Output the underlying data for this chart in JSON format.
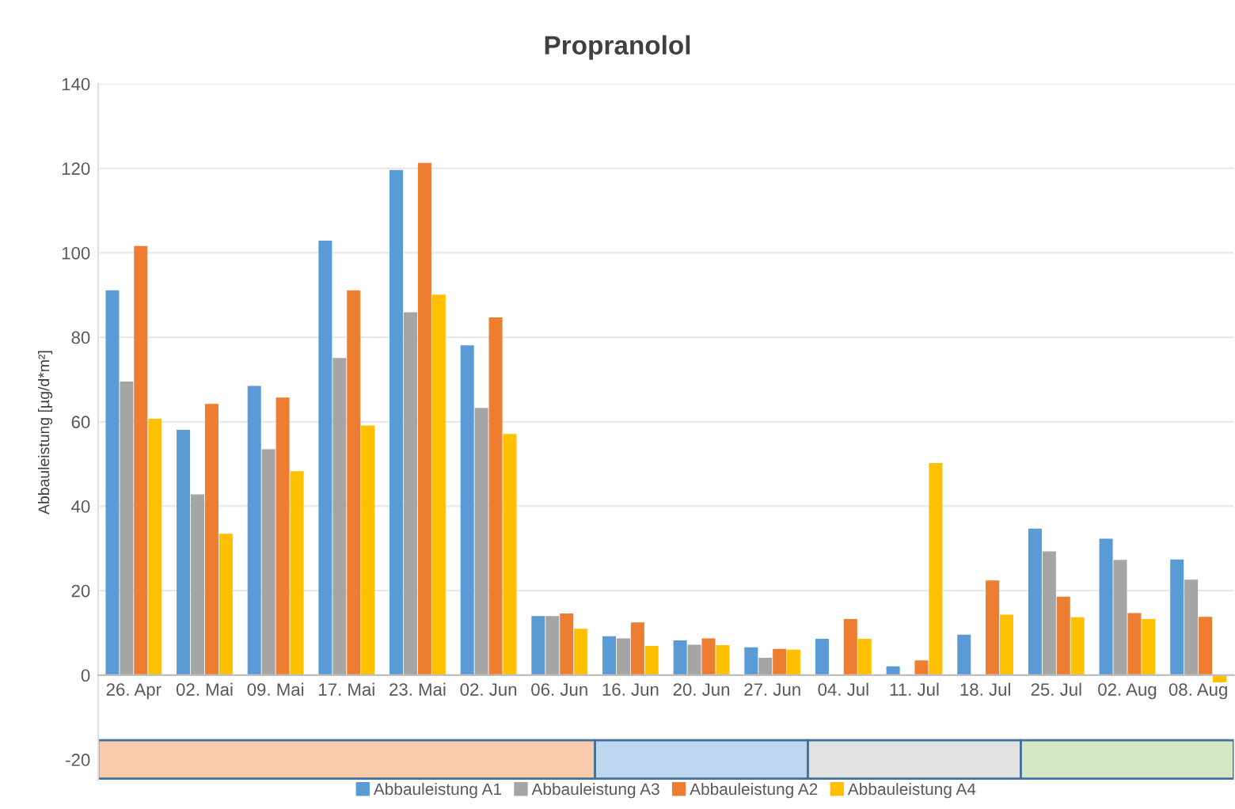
{
  "chart_data": {
    "type": "bar",
    "title": "Propranolol",
    "ylabel": "Abbauleistung [µg/d*m²]",
    "categories": [
      "26. Apr",
      "02. Mai",
      "09. Mai",
      "17. Mai",
      "23. Mai",
      "02. Jun",
      "06. Jun",
      "16. Jun",
      "20. Jun",
      "27. Jun",
      "04. Jul",
      "11. Jul",
      "18. Jul",
      "25. Jul",
      "02. Aug",
      "08. Aug"
    ],
    "series": [
      {
        "name": "Abbauleistung A1",
        "color": "#5b9bd5",
        "values": [
          91.1,
          58.1,
          68.5,
          102.9,
          119.6,
          78.1,
          14.0,
          9.2,
          8.2,
          6.6,
          8.6,
          2.1,
          9.6,
          34.7,
          32.3,
          27.4
        ]
      },
      {
        "name": "Abbauleistung A3",
        "color": "#a5a5a5",
        "values": [
          69.5,
          42.8,
          53.5,
          75.1,
          85.9,
          63.3,
          14.0,
          8.7,
          7.2,
          4.1,
          null,
          null,
          null,
          29.3,
          27.3,
          22.6
        ]
      },
      {
        "name": "Abbauleistung A2",
        "color": "#ed7d31",
        "values": [
          101.6,
          64.2,
          65.7,
          91.1,
          121.3,
          84.7,
          14.6,
          12.5,
          8.7,
          6.2,
          13.3,
          3.5,
          22.4,
          18.6,
          14.7,
          13.8
        ]
      },
      {
        "name": "Abbauleistung A4",
        "color": "#ffc000",
        "values": [
          60.7,
          33.5,
          48.3,
          59.1,
          90.1,
          57.1,
          11.0,
          6.9,
          7.1,
          6.0,
          8.6,
          50.2,
          14.3,
          13.7,
          13.3,
          -1.7
        ]
      }
    ],
    "ylim": [
      -25,
      140
    ],
    "yticks": [
      -20,
      0,
      20,
      40,
      60,
      80,
      100,
      120,
      140
    ],
    "grid": "y",
    "legend": "bottom",
    "bands": [
      {
        "axis": "x",
        "from": "26. Apr",
        "to": "06. Jun",
        "color": "#f8cbad"
      },
      {
        "axis": "x",
        "from": "16. Jun",
        "to": "27. Jun",
        "color": "#bdd7ee"
      },
      {
        "axis": "x",
        "from": "04. Jul",
        "to": "18. Jul",
        "color": "#e2e2e2"
      },
      {
        "axis": "x",
        "from": "25. Jul",
        "to": "08. Aug",
        "color": "#d5e8c4"
      }
    ]
  }
}
